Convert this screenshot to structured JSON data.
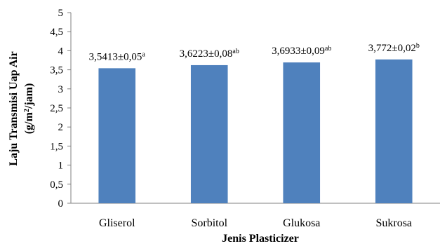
{
  "chart_data": {
    "type": "bar",
    "categories": [
      "Gliserol",
      "Sorbitol",
      "Glukosa",
      "Sukrosa"
    ],
    "values": [
      3.5413,
      3.6223,
      3.6933,
      3.772
    ],
    "data_labels": [
      {
        "text": "3,5413±0,05",
        "sup": "a"
      },
      {
        "text": "3,6223±0,08",
        "sup": "ab"
      },
      {
        "text": "3,6933±0,09",
        "sup": "ab"
      },
      {
        "text": "3,772±0,02",
        "sup": "b"
      }
    ],
    "xlabel": "Jenis Plasticizer",
    "ylabel_line1": "Laju Transmisi Uap Air",
    "ylabel_line2_prefix": "(g/m",
    "ylabel_line2_sup": "2",
    "ylabel_line2_suffix": "/jam)",
    "ylim": [
      0,
      5
    ],
    "yticks": [
      "0",
      "0,5",
      "1",
      "1,5",
      "2",
      "2,5",
      "3",
      "3,5",
      "4",
      "4,5",
      "5"
    ],
    "grid": false,
    "legend": "none",
    "bar_color": "#4f81bd"
  }
}
